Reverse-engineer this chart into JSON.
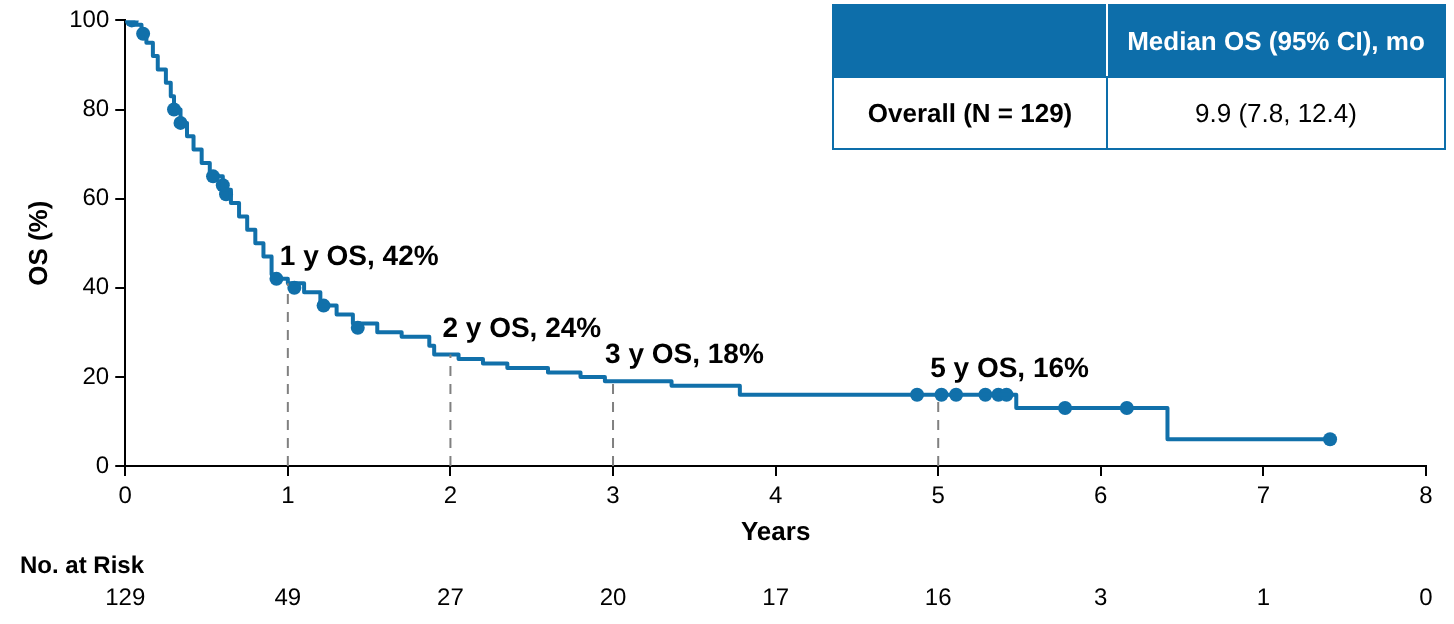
{
  "chart_data": {
    "type": "step",
    "xlabel": "Years",
    "ylabel": "OS (%)",
    "xlim": [
      0,
      8
    ],
    "xticks": [
      0,
      1,
      2,
      3,
      4,
      5,
      6,
      7,
      8
    ],
    "ylim": [
      0,
      100
    ],
    "yticks": [
      0,
      20,
      40,
      60,
      80,
      100
    ],
    "grid": false,
    "legend": false,
    "series": [
      {
        "color": "#1170aa",
        "marker": "none",
        "x": [
          0,
          0.05,
          0.1,
          0.13,
          0.17,
          0.2,
          0.25,
          0.28,
          0.3,
          0.34,
          0.38,
          0.42,
          0.47,
          0.52,
          0.6,
          0.65,
          0.7,
          0.75,
          0.8,
          0.85,
          0.9,
          0.93,
          1.0,
          1.1,
          1.2,
          1.3,
          1.4,
          1.55,
          1.7,
          1.87,
          1.9,
          2.05,
          2.2,
          2.35,
          2.6,
          2.8,
          2.95,
          3.36,
          3.78,
          5.48,
          6.41,
          7.41
        ],
        "values": [
          100,
          99,
          97,
          95,
          92,
          89,
          86,
          83,
          80,
          77,
          74,
          71,
          68,
          65,
          62,
          59,
          56,
          53,
          50,
          47,
          43,
          42,
          41,
          39,
          36,
          34,
          32,
          30,
          29,
          27,
          25,
          24,
          23,
          22,
          21,
          20,
          19,
          18,
          16,
          13,
          6,
          6
        ]
      },
      {
        "type": "scatter",
        "color": "#1170aa",
        "marker": "circle",
        "x": [
          0.04,
          0.11,
          0.3,
          0.34,
          0.54,
          0.6,
          0.62,
          0.93,
          1.04,
          1.22,
          1.43,
          4.87,
          5.02,
          5.11,
          5.29,
          5.37,
          5.42,
          5.78,
          6.16,
          7.41
        ],
        "values": [
          100,
          97,
          80,
          77,
          65,
          63,
          61,
          42,
          40,
          36,
          31,
          16,
          16,
          16,
          16,
          16,
          16,
          13,
          13,
          6
        ]
      }
    ],
    "ref_lines": [
      {
        "axis": "x",
        "value": 1,
        "label": "1 y OS, 42%",
        "line_style": "dashed",
        "color": "#808080"
      },
      {
        "axis": "x",
        "value": 2,
        "label": "2 y OS, 24%",
        "line_style": "dashed",
        "color": "#808080"
      },
      {
        "axis": "x",
        "value": 3,
        "label": "3 y OS, 18%",
        "line_style": "dashed",
        "color": "#808080"
      },
      {
        "axis": "x",
        "value": 5,
        "label": "5 y OS, 16%",
        "line_style": "dashed",
        "color": "#808080"
      }
    ],
    "annotations": [
      "Median OS (95% CI), mo",
      "Overall (N = 129)",
      "9.9 (7.8, 12.4)",
      "No. at Risk",
      "129",
      "49",
      "27",
      "20",
      "17",
      "16",
      "3",
      "1",
      "0"
    ]
  }
}
